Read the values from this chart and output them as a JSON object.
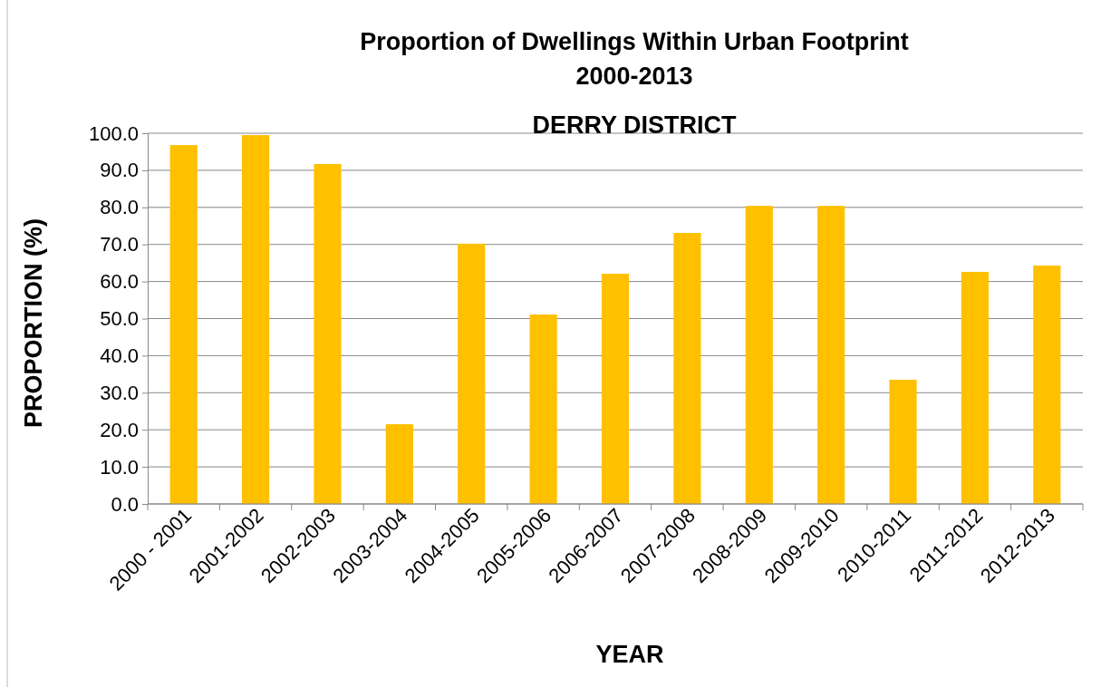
{
  "chart_data": {
    "type": "bar",
    "title": "Proportion of Dwellings Within Urban Footprint\n2000-2013",
    "subtitle": "DERRY DISTRICT",
    "xlabel": "YEAR",
    "ylabel": "PROPORTION (%)",
    "categories": [
      "2000 - 2001",
      "2001-2002",
      "2002-2003",
      "2003-2004",
      "2004-2005",
      "2005-2006",
      "2006-2007",
      "2007-2008",
      "2008-2009",
      "2009-2010",
      "2010-2011",
      "2011-2012",
      "2012-2013"
    ],
    "values": [
      96.8,
      99.5,
      91.7,
      21.5,
      70.2,
      51.1,
      62.1,
      73.1,
      80.4,
      80.4,
      33.5,
      62.6,
      64.3
    ],
    "color": "#ffc000",
    "ylim": [
      0,
      100
    ],
    "yticks": [
      {
        "value": 0,
        "label": "0.0"
      },
      {
        "value": 10,
        "label": "10.0"
      },
      {
        "value": 20,
        "label": "20.0"
      },
      {
        "value": 30,
        "label": "30.0"
      },
      {
        "value": 40,
        "label": "40.0"
      },
      {
        "value": 50,
        "label": "50.0"
      },
      {
        "value": 60,
        "label": "60.0"
      },
      {
        "value": 70,
        "label": "70.0"
      },
      {
        "value": 80,
        "label": "80.0"
      },
      {
        "value": 90,
        "label": "90.0"
      },
      {
        "value": 100,
        "label": "100.0"
      }
    ],
    "grid": "y"
  }
}
